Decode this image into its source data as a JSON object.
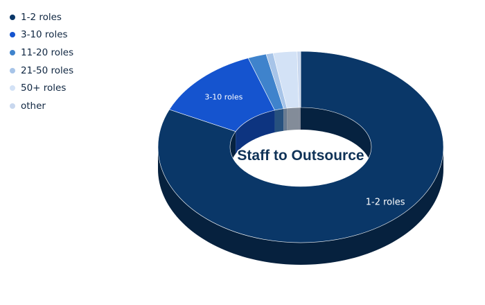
{
  "chart_data": {
    "type": "pie",
    "variant": "3d-donut",
    "center_label": "Staff to Outsource",
    "legend_position": "top-left",
    "series": [
      {
        "name": "1-2 roles",
        "value": 81.4,
        "color": "#0a3768",
        "data_label": "1-2 roles"
      },
      {
        "name": "3-10 roles",
        "value": 12.6,
        "color": "#1554cf",
        "data_label": "3-10 roles"
      },
      {
        "name": "11-20 roles",
        "value": 2.1,
        "color": "#3f83cc",
        "data_label": ""
      },
      {
        "name": "21-50 roles",
        "value": 0.8,
        "color": "#a7c4e8",
        "data_label": ""
      },
      {
        "name": "50+ roles",
        "value": 2.7,
        "color": "#d3e2f6",
        "data_label": ""
      },
      {
        "name": "other",
        "value": 0.4,
        "color": "#c8d7ee",
        "data_label": ""
      }
    ]
  }
}
